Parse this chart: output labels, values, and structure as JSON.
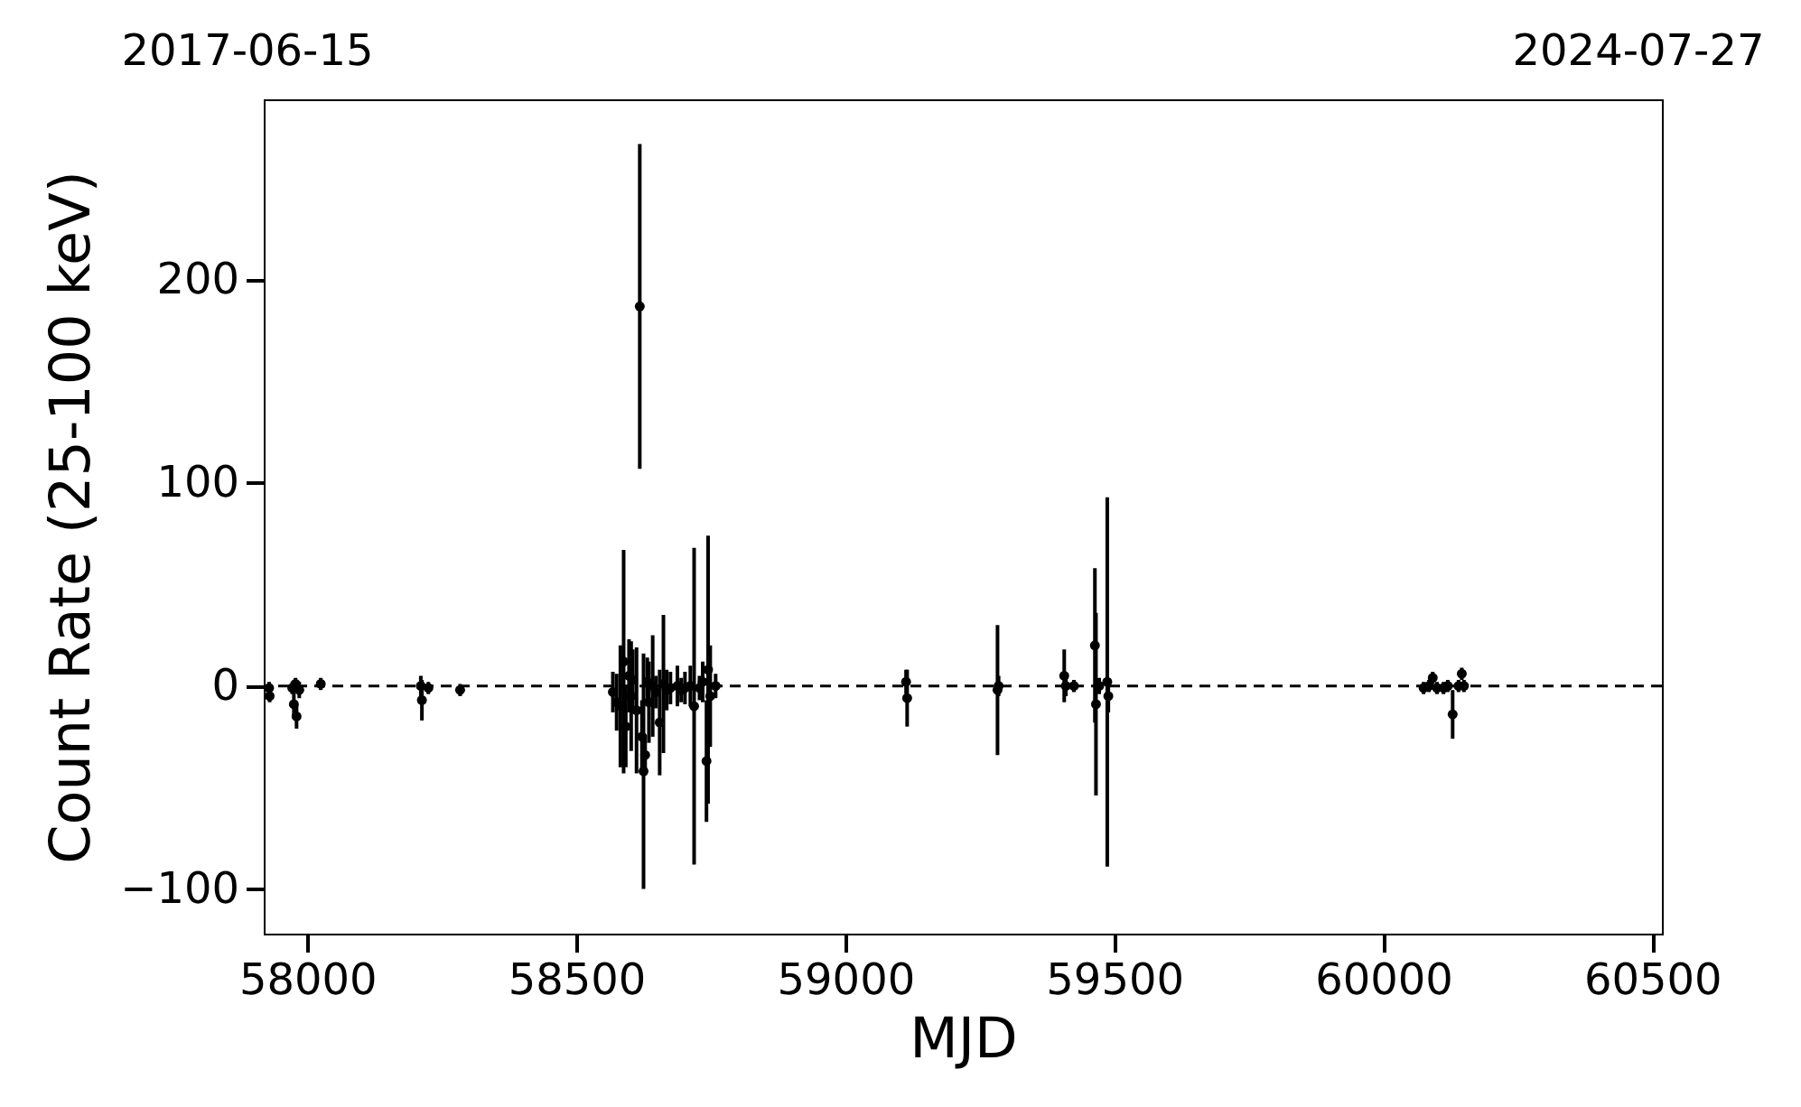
{
  "chart_data": {
    "type": "scatter",
    "xlabel": "MJD",
    "ylabel": "Count Rate (25-100 keV)",
    "marker": "circle",
    "grid": false,
    "xlim": [
      57919,
      60518
    ],
    "xticks": [
      58000,
      58500,
      59000,
      59500,
      60000,
      60500
    ],
    "ylim": [
      -122,
      289
    ],
    "yticks": [
      -100,
      0,
      100,
      200
    ],
    "annotations": [
      "2017-06-15",
      "2024-07-27"
    ],
    "ref_lines": [
      {
        "axis": "y",
        "value": 0,
        "label": null,
        "color": "#000000",
        "line_style": "dashed"
      }
    ],
    "series": [
      {
        "color": "#000000",
        "x": [
          57929,
          57930,
          57972,
          57975,
          57980,
          57985,
          57978,
          58025,
          58211,
          58213,
          58225,
          58284,
          58568,
          58575,
          58582,
          58588,
          58592,
          58598,
          58602,
          58605,
          58612,
          58618,
          58622,
          58625,
          58628,
          58632,
          58635,
          58642,
          58648,
          58655,
          58662,
          58668,
          58675,
          58688,
          58695,
          58702,
          58712,
          58719,
          58729,
          58735,
          58742,
          58745,
          58749,
          58759,
          59113,
          59115,
          59283,
          59285,
          59407,
          59410,
          59425,
          59464,
          59466,
          59472,
          59487,
          59489,
          60075,
          60085,
          60092,
          60100,
          60112,
          60120,
          60129,
          60140,
          60146,
          60150
        ],
        "values": [
          -1,
          -5,
          -1,
          -9,
          -15,
          -2,
          1,
          1,
          0,
          -7,
          -1,
          -2,
          -3,
          -8,
          -10,
          12,
          -20,
          5,
          -5,
          3,
          -12,
          187,
          -25,
          -42,
          -34,
          2,
          -8,
          0,
          -3,
          -18,
          1,
          -2,
          -1,
          0,
          -2,
          -1,
          0,
          -10,
          -1,
          2,
          -37,
          8,
          -5,
          0,
          2,
          -6,
          -2,
          0,
          5,
          0,
          0,
          20,
          -9,
          0,
          2,
          -5,
          -1,
          0,
          4,
          -1,
          -1,
          0,
          -14,
          0,
          6,
          0
        ],
        "errors": [
          3,
          3,
          3,
          6,
          6,
          4,
          3,
          3,
          5,
          10,
          3,
          3,
          10,
          14,
          30,
          55,
          20,
          18,
          27,
          15,
          31,
          80,
          18,
          58,
          10,
          12,
          20,
          25,
          8,
          26,
          34,
          10,
          8,
          10,
          6,
          8,
          10,
          78,
          6,
          10,
          30,
          66,
          25,
          6,
          6,
          14,
          32,
          5,
          13,
          5,
          3,
          38,
          45,
          4,
          91,
          8,
          3,
          3,
          3,
          3,
          3,
          3,
          12,
          3,
          3,
          3
        ]
      }
    ]
  }
}
